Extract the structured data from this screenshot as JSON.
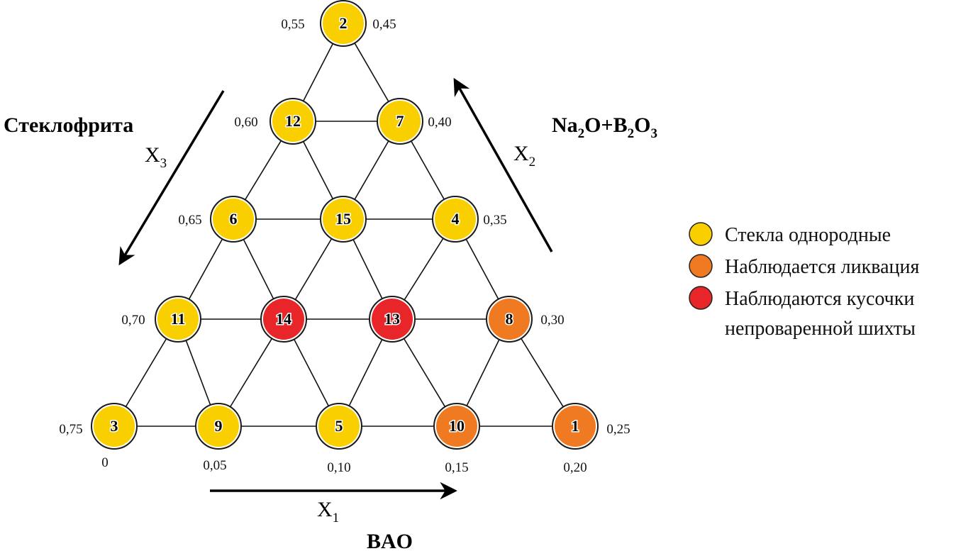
{
  "colors": {
    "homogeneous": "#f9cf00",
    "liquation": "#f07a22",
    "unmelted": "#e8262a"
  },
  "nodes": [
    {
      "id": "2",
      "status": "homogeneous"
    },
    {
      "id": "12",
      "status": "homogeneous"
    },
    {
      "id": "7",
      "status": "homogeneous"
    },
    {
      "id": "6",
      "status": "homogeneous"
    },
    {
      "id": "15",
      "status": "homogeneous"
    },
    {
      "id": "4",
      "status": "homogeneous"
    },
    {
      "id": "11",
      "status": "homogeneous"
    },
    {
      "id": "14",
      "status": "unmelted"
    },
    {
      "id": "13",
      "status": "unmelted"
    },
    {
      "id": "8",
      "status": "liquation"
    },
    {
      "id": "3",
      "status": "homogeneous"
    },
    {
      "id": "9",
      "status": "homogeneous"
    },
    {
      "id": "5",
      "status": "homogeneous"
    },
    {
      "id": "10",
      "status": "liquation"
    },
    {
      "id": "1",
      "status": "liquation"
    }
  ],
  "edges": [
    [
      "12",
      "7"
    ],
    [
      "6",
      "15"
    ],
    [
      "15",
      "4"
    ],
    [
      "11",
      "14"
    ],
    [
      "14",
      "13"
    ],
    [
      "13",
      "8"
    ],
    [
      "3",
      "9"
    ],
    [
      "9",
      "5"
    ],
    [
      "5",
      "10"
    ],
    [
      "10",
      "1"
    ],
    [
      "2",
      "12"
    ],
    [
      "2",
      "7"
    ],
    [
      "12",
      "6"
    ],
    [
      "12",
      "15"
    ],
    [
      "7",
      "15"
    ],
    [
      "7",
      "4"
    ],
    [
      "6",
      "11"
    ],
    [
      "6",
      "14"
    ],
    [
      "15",
      "14"
    ],
    [
      "15",
      "13"
    ],
    [
      "4",
      "13"
    ],
    [
      "4",
      "8"
    ],
    [
      "11",
      "3"
    ],
    [
      "11",
      "9"
    ],
    [
      "14",
      "9"
    ],
    [
      "14",
      "5"
    ],
    [
      "13",
      "5"
    ],
    [
      "13",
      "10"
    ],
    [
      "8",
      "10"
    ],
    [
      "8",
      "1"
    ]
  ],
  "axes": {
    "x3": {
      "component": "Стеклофрита",
      "symbol": "X",
      "sub": "3",
      "ticks": [
        "0,55",
        "0,60",
        "0,65",
        "0,70",
        "0,75"
      ]
    },
    "x2": {
      "component_parts": [
        "Na",
        "2",
        "O+B",
        "2",
        "O",
        "3"
      ],
      "symbol": "X",
      "sub": "2",
      "ticks": [
        "0,45",
        "0,40",
        "0,35",
        "0,30",
        "0,25"
      ]
    },
    "x1": {
      "component": "BAO",
      "symbol": "X",
      "sub": "1",
      "ticks": [
        "0",
        "0,05",
        "0,10",
        "0,15",
        "0,20"
      ]
    }
  },
  "legend": [
    {
      "status": "homogeneous",
      "lines": [
        "Стекла однородные"
      ]
    },
    {
      "status": "liquation",
      "lines": [
        "Наблюдается ликвация"
      ]
    },
    {
      "status": "unmelted",
      "lines": [
        "Наблюдаются кусочки",
        "непроваренной шихты"
      ]
    }
  ]
}
